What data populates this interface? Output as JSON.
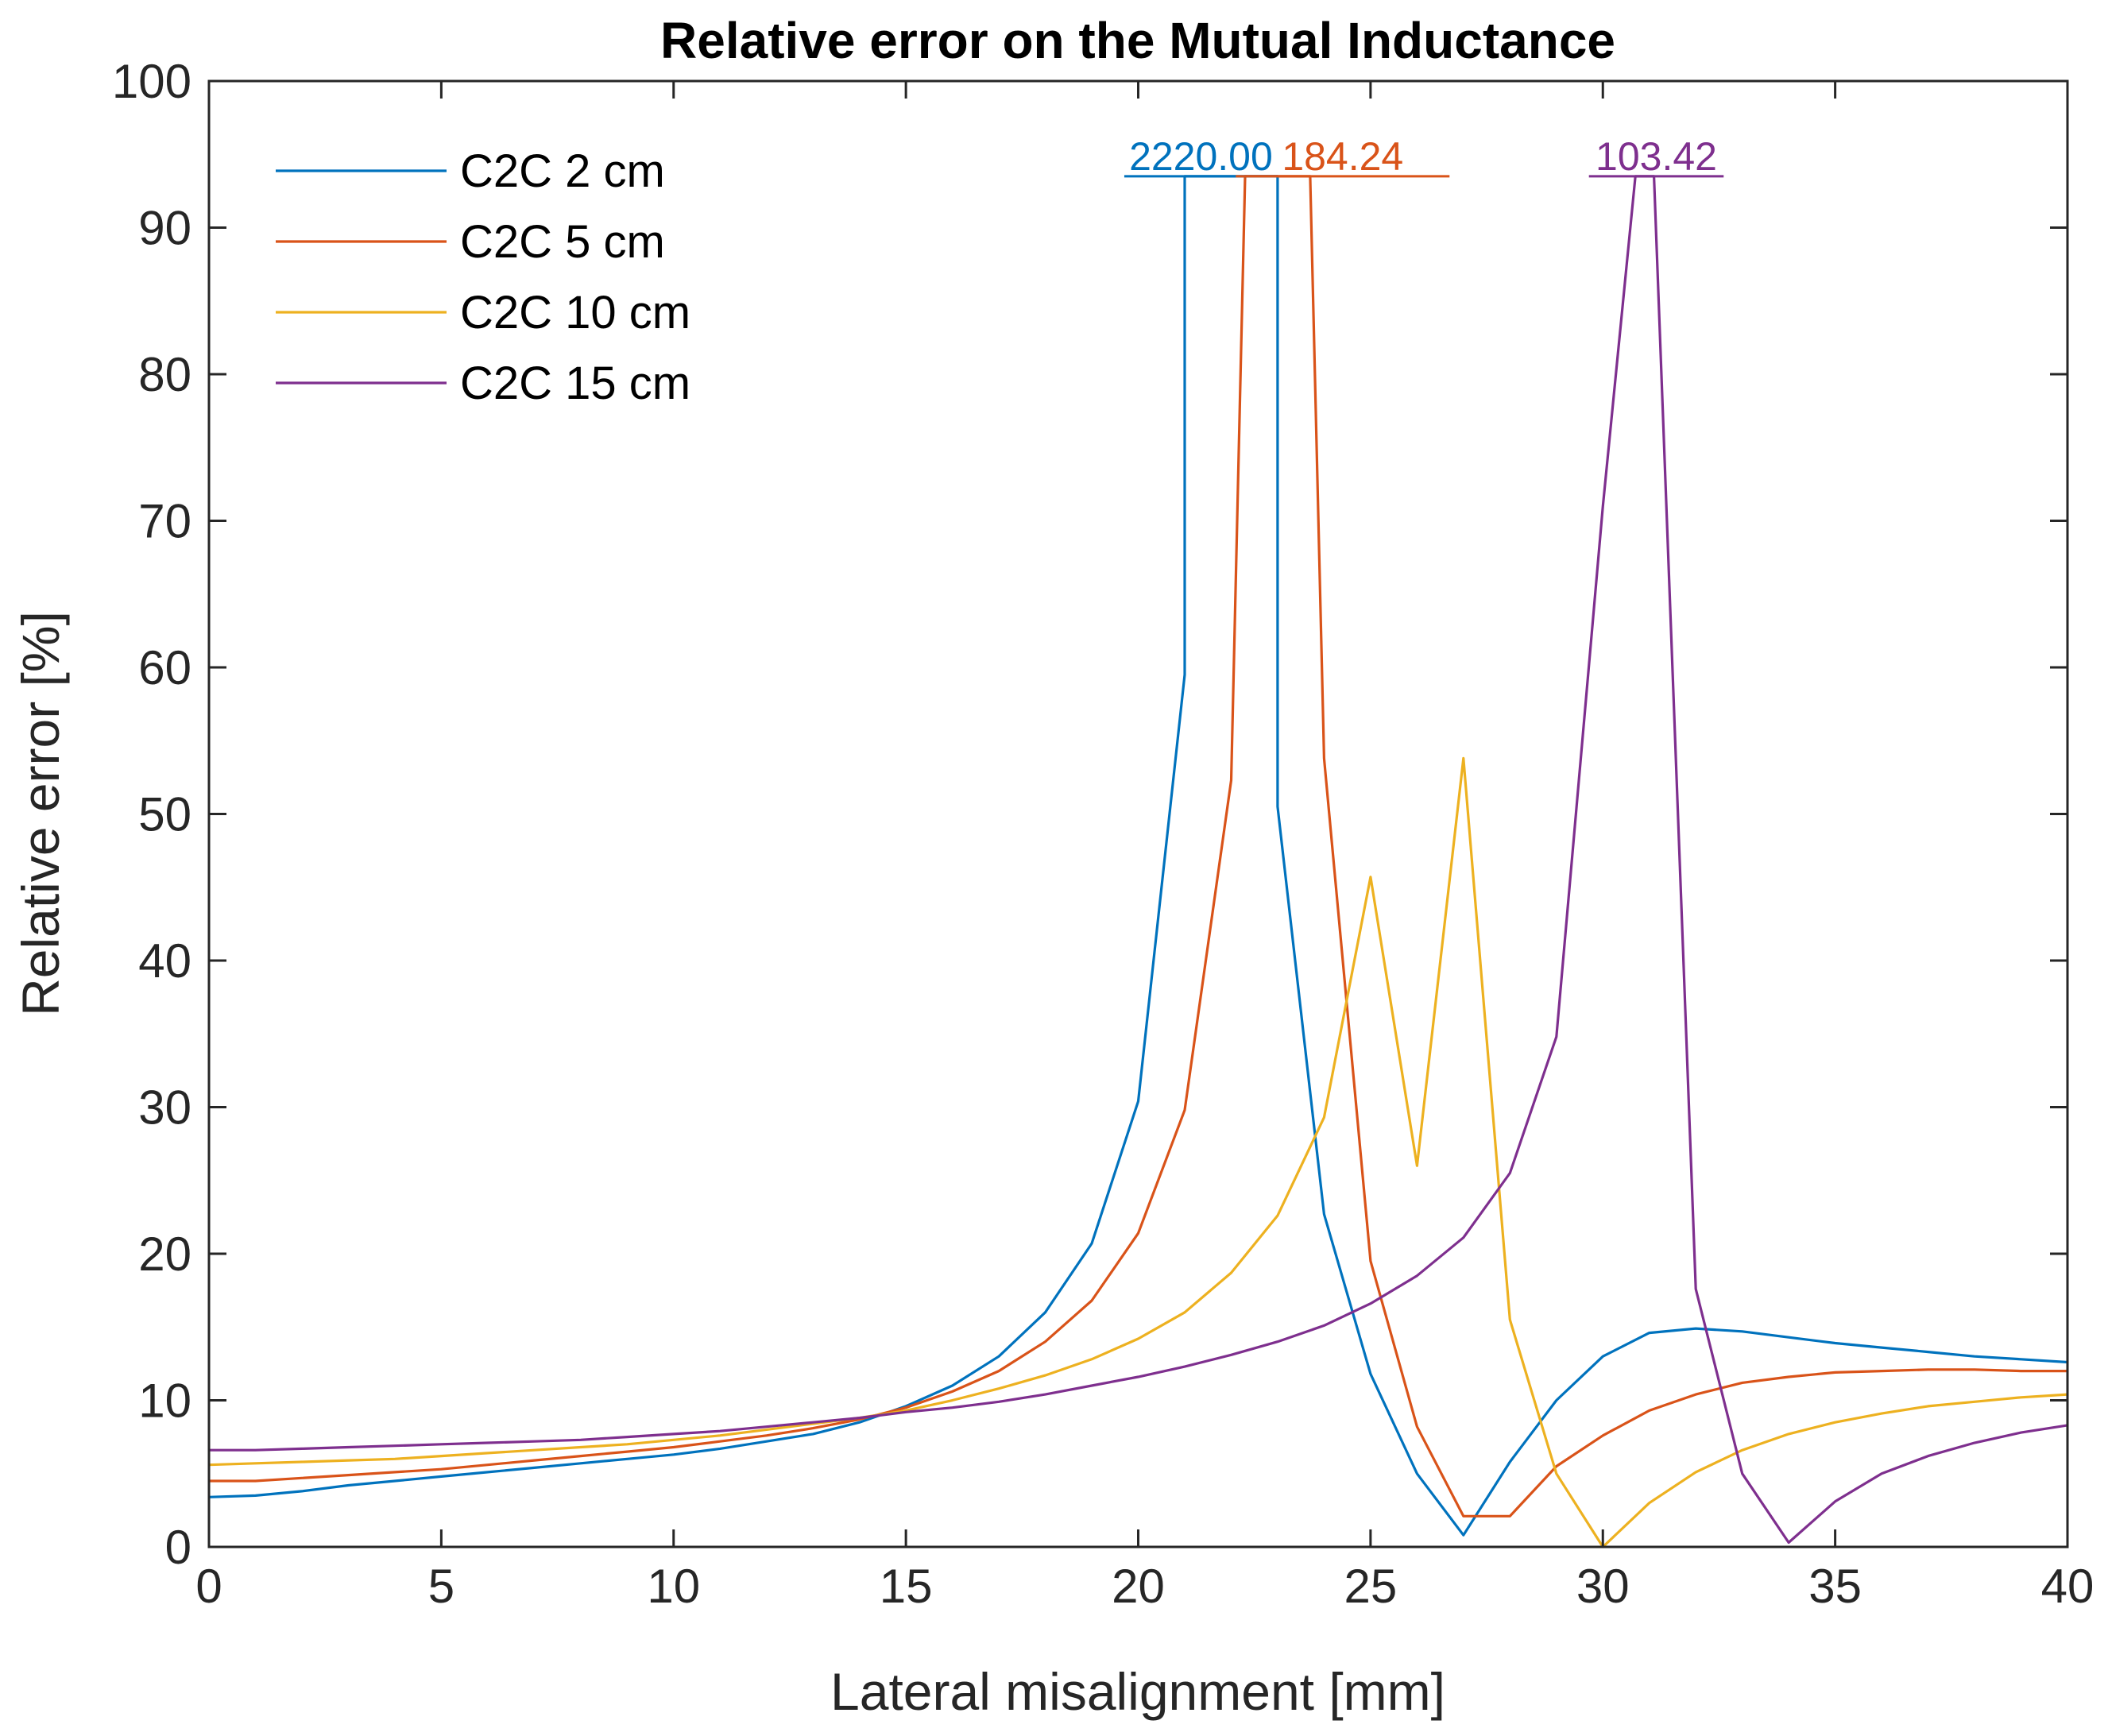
{
  "chart_data": {
    "type": "line",
    "title": "Relative error on the Mutual Inductance",
    "xlabel": "Lateral misalignment [mm]",
    "ylabel": "Relative error [%]",
    "xlim": [
      0,
      40
    ],
    "ylim": [
      0,
      100
    ],
    "xticks": [
      "0",
      "5",
      "10",
      "15",
      "20",
      "25",
      "30",
      "35",
      "40"
    ],
    "yticks": [
      "0",
      "10",
      "20",
      "30",
      "40",
      "50",
      "60",
      "70",
      "80",
      "90",
      "100"
    ],
    "grid": false,
    "legend_position": "top-left",
    "series": [
      {
        "name": "C2C 2 cm",
        "color": "#0072BD",
        "x": [
          0,
          1,
          2,
          3,
          4,
          5,
          6,
          7,
          8,
          9,
          10,
          11,
          12,
          13,
          14,
          15,
          16,
          17,
          18,
          19,
          20,
          21,
          21,
          23,
          23,
          24,
          25,
          26,
          27,
          28,
          29,
          30,
          31,
          32,
          33,
          34,
          35,
          36,
          37,
          38,
          39,
          40
        ],
        "y": [
          3.4,
          3.5,
          3.8,
          4.2,
          4.5,
          4.8,
          5.1,
          5.4,
          5.7,
          6.0,
          6.3,
          6.7,
          7.2,
          7.7,
          8.5,
          9.6,
          11.0,
          13.0,
          16.0,
          20.7,
          30.4,
          59.5,
          93.5,
          93.5,
          50.5,
          22.7,
          11.8,
          5.0,
          0.8,
          5.8,
          10.0,
          13.0,
          14.6,
          14.9,
          14.7,
          14.3,
          13.9,
          13.6,
          13.3,
          13.0,
          12.8,
          12.6
        ]
      },
      {
        "name": "C2C 5 cm",
        "color": "#D95319",
        "x": [
          0,
          1,
          2,
          3,
          4,
          5,
          6,
          7,
          8,
          9,
          10,
          11,
          12,
          13,
          14,
          15,
          16,
          17,
          18,
          19,
          20,
          21,
          22,
          22.3,
          23.7,
          24,
          25,
          26,
          27,
          28,
          29,
          30,
          31,
          32,
          33,
          34,
          35,
          36,
          37,
          38,
          39,
          40
        ],
        "y": [
          4.5,
          4.5,
          4.7,
          4.9,
          5.1,
          5.3,
          5.6,
          5.9,
          6.2,
          6.5,
          6.8,
          7.2,
          7.6,
          8.1,
          8.7,
          9.5,
          10.6,
          12.0,
          14.0,
          16.8,
          21.4,
          29.8,
          52.3,
          93.5,
          93.5,
          53.8,
          19.5,
          8.2,
          2.1,
          2.1,
          5.5,
          7.6,
          9.3,
          10.4,
          11.2,
          11.6,
          11.9,
          12.0,
          12.1,
          12.1,
          12.0,
          12.0
        ]
      },
      {
        "name": "C2C 10 cm",
        "color": "#EDB120",
        "x": [
          0,
          1,
          2,
          3,
          4,
          5,
          6,
          7,
          8,
          9,
          10,
          11,
          12,
          13,
          14,
          15,
          16,
          17,
          18,
          19,
          20,
          21,
          22,
          23,
          24,
          25,
          26,
          27,
          28,
          29,
          30,
          31,
          32,
          33,
          34,
          35,
          36,
          37,
          38,
          39,
          40
        ],
        "y": [
          5.6,
          5.7,
          5.8,
          5.9,
          6.0,
          6.2,
          6.4,
          6.6,
          6.8,
          7.0,
          7.3,
          7.6,
          8.0,
          8.4,
          8.8,
          9.3,
          10.0,
          10.8,
          11.7,
          12.8,
          14.2,
          16.0,
          18.7,
          22.6,
          29.3,
          45.7,
          26.0,
          53.8,
          15.5,
          5.0,
          0.0,
          3.0,
          5.1,
          6.6,
          7.7,
          8.5,
          9.1,
          9.6,
          9.9,
          10.2,
          10.4
        ]
      },
      {
        "name": "C2C 15 cm",
        "color": "#7E2F8E",
        "x": [
          0,
          1,
          2,
          3,
          4,
          5,
          6,
          7,
          8,
          9,
          10,
          11,
          12,
          13,
          14,
          15,
          16,
          17,
          18,
          19,
          20,
          21,
          22,
          23,
          24,
          25,
          26,
          27,
          28,
          29,
          30,
          30.7,
          31.1,
          32,
          33,
          34,
          35,
          36,
          37,
          38,
          39,
          40
        ],
        "y": [
          6.6,
          6.6,
          6.7,
          6.8,
          6.9,
          7.0,
          7.1,
          7.2,
          7.3,
          7.5,
          7.7,
          7.9,
          8.2,
          8.5,
          8.8,
          9.2,
          9.5,
          9.9,
          10.4,
          11.0,
          11.6,
          12.3,
          13.1,
          14.0,
          15.1,
          16.6,
          18.5,
          21.1,
          25.5,
          34.8,
          71.0,
          93.5,
          93.5,
          17.6,
          5.0,
          0.3,
          3.1,
          5.0,
          6.2,
          7.1,
          7.8,
          8.3
        ]
      }
    ],
    "annotations": [
      {
        "text": "2220.00",
        "color": "#0072BD",
        "x_from": 19.7,
        "x_to": 23.0,
        "y": 93.5
      },
      {
        "text": "184.24",
        "color": "#D95319",
        "x_from": 22.1,
        "x_to": 26.7,
        "y": 93.5
      },
      {
        "text": "103.42",
        "color": "#7E2F8E",
        "x_from": 29.7,
        "x_to": 32.6,
        "y": 93.5
      }
    ]
  }
}
